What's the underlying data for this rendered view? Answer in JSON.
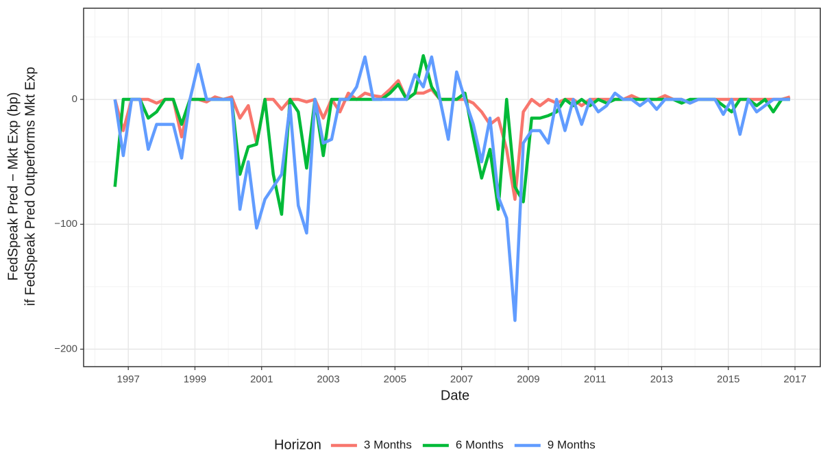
{
  "chart_data": {
    "type": "line",
    "x_label": "Date",
    "y_label": [
      "FedSpeak Pred − Mkt Exp (bp)",
      "if FedSpeak Pred Outperforms Mkt Exp"
    ],
    "legend_title": "Horizon",
    "legend_position": "bottom",
    "grid": true,
    "xlim": [
      1995.66,
      2017.76
    ],
    "xticks": [
      1997,
      1999,
      2001,
      2003,
      2005,
      2007,
      2009,
      2011,
      2013,
      2015,
      2017
    ],
    "ylim": [
      -214,
      73
    ],
    "yticks": [
      {
        "value": -200,
        "label": "−200"
      },
      {
        "value": -100,
        "label": "−100"
      },
      0
    ],
    "x": [
      1996.6,
      1996.85,
      1997.1,
      1997.35,
      1997.6,
      1997.85,
      1998.1,
      1998.35,
      1998.6,
      1998.85,
      1999.1,
      1999.35,
      1999.6,
      1999.85,
      2000.1,
      2000.35,
      2000.6,
      2000.85,
      2001.1,
      2001.35,
      2001.6,
      2001.85,
      2002.1,
      2002.35,
      2002.6,
      2002.85,
      2003.1,
      2003.35,
      2003.6,
      2003.85,
      2004.1,
      2004.35,
      2004.6,
      2004.85,
      2005.1,
      2005.35,
      2005.6,
      2005.85,
      2006.1,
      2006.35,
      2006.6,
      2006.85,
      2007.1,
      2007.35,
      2007.6,
      2007.85,
      2008.1,
      2008.35,
      2008.6,
      2008.85,
      2009.1,
      2009.35,
      2009.6,
      2009.85,
      2010.1,
      2010.35,
      2010.6,
      2010.85,
      2011.1,
      2011.35,
      2011.6,
      2011.85,
      2012.1,
      2012.35,
      2012.6,
      2012.85,
      2013.1,
      2013.35,
      2013.6,
      2013.85,
      2014.1,
      2014.35,
      2014.6,
      2014.85,
      2015.1,
      2015.35,
      2015.6,
      2015.85,
      2016.1,
      2016.35,
      2016.6,
      2016.85
    ],
    "series": [
      {
        "name": "3 Months",
        "color": "#F8766D",
        "values": [
          0,
          -25,
          0,
          0,
          0,
          -3,
          0,
          0,
          -30,
          0,
          0,
          -2,
          2,
          0,
          2,
          -15,
          -5,
          -35,
          0,
          0,
          -8,
          0,
          0,
          -2,
          0,
          -15,
          0,
          -10,
          5,
          0,
          5,
          3,
          2,
          8,
          15,
          0,
          5,
          5,
          8,
          0,
          0,
          0,
          0,
          -3,
          -10,
          -20,
          -15,
          -40,
          -80,
          -10,
          0,
          -5,
          0,
          -3,
          0,
          0,
          -5,
          0,
          0,
          0,
          0,
          0,
          3,
          0,
          0,
          0,
          3,
          0,
          0,
          -3,
          0,
          0,
          0,
          0,
          0,
          0,
          0,
          0,
          0,
          0,
          0,
          2
        ]
      },
      {
        "name": "6 Months",
        "color": "#00BA38",
        "values": [
          -70,
          0,
          0,
          0,
          -15,
          -10,
          0,
          0,
          -20,
          0,
          0,
          0,
          0,
          0,
          0,
          -60,
          -38,
          -36,
          0,
          -60,
          -92,
          0,
          -10,
          -55,
          0,
          -45,
          0,
          0,
          0,
          0,
          0,
          0,
          0,
          5,
          12,
          0,
          5,
          35,
          10,
          0,
          0,
          0,
          5,
          -30,
          -63,
          -40,
          -88,
          0,
          -70,
          -82,
          -15,
          -15,
          -13,
          -10,
          0,
          -5,
          0,
          -5,
          0,
          -3,
          0,
          0,
          0,
          0,
          0,
          0,
          0,
          0,
          -3,
          0,
          0,
          0,
          0,
          -5,
          -10,
          0,
          0,
          -5,
          0,
          -10,
          0,
          0
        ]
      },
      {
        "name": "9 Months",
        "color": "#619CFF",
        "values": [
          0,
          -45,
          0,
          0,
          -40,
          -20,
          -20,
          -20,
          -47,
          0,
          28,
          0,
          0,
          0,
          0,
          -88,
          -50,
          -103,
          -80,
          -70,
          -60,
          -5,
          -85,
          -107,
          0,
          -35,
          -32,
          0,
          0,
          10,
          34,
          0,
          0,
          0,
          0,
          0,
          20,
          10,
          34,
          0,
          -32,
          22,
          0,
          -20,
          -50,
          -15,
          -78,
          -95,
          -177,
          -35,
          -25,
          -25,
          -35,
          0,
          -25,
          0,
          -20,
          0,
          -10,
          -5,
          5,
          0,
          0,
          -5,
          0,
          -8,
          0,
          0,
          0,
          -3,
          0,
          0,
          0,
          -12,
          0,
          -28,
          0,
          -10,
          -5,
          0,
          0,
          0
        ]
      }
    ]
  }
}
